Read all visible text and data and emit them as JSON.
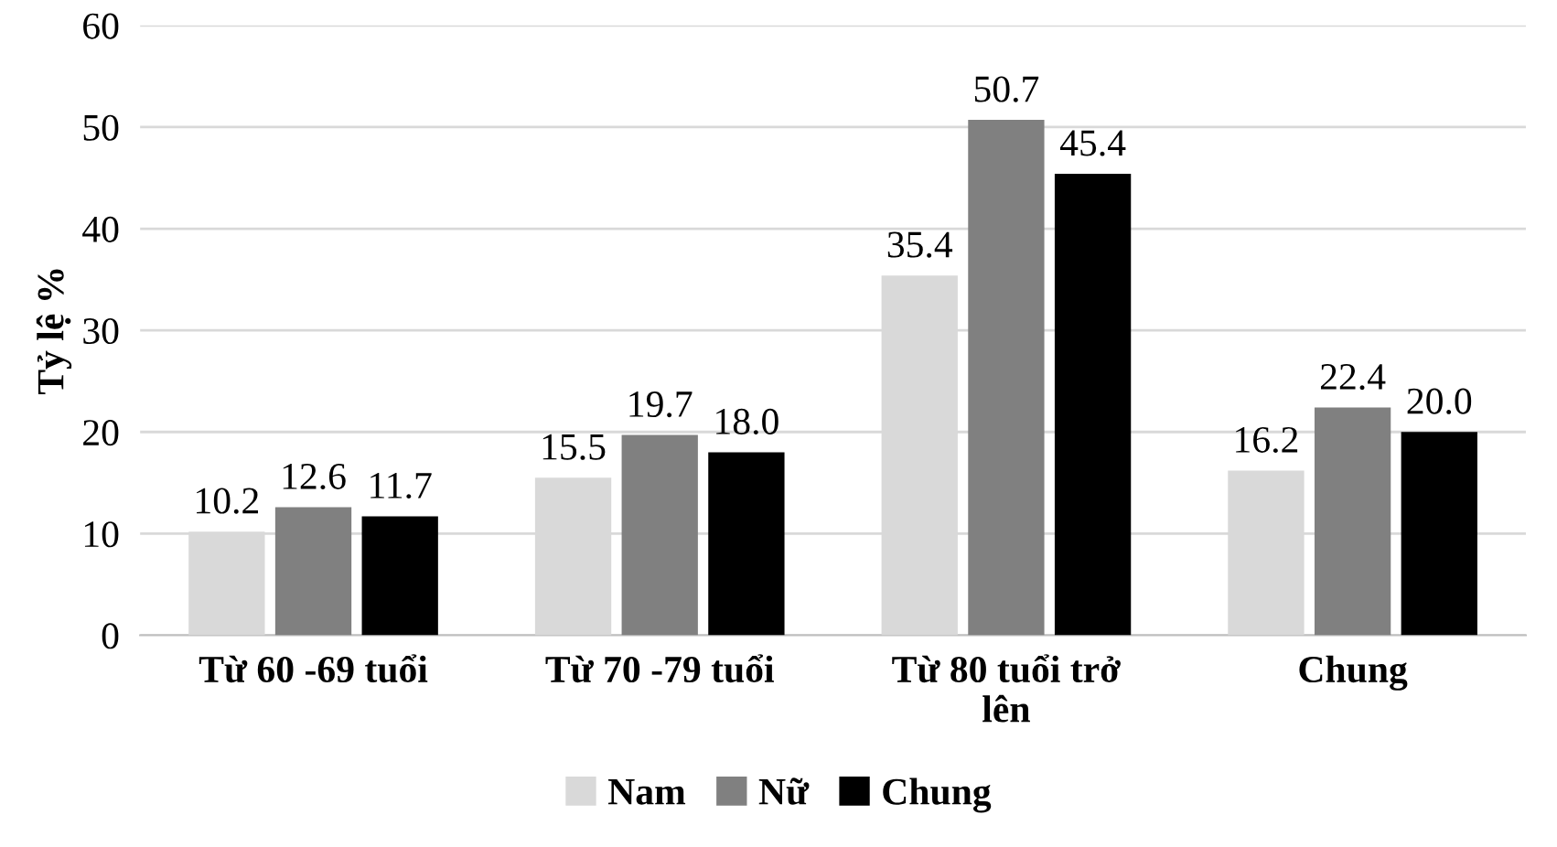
{
  "chart_data": {
    "type": "bar",
    "ylabel": "Tỷ lệ %",
    "categories": [
      "Từ 60 -69 tuổi",
      "Từ 70 -79 tuổi",
      "Từ 80 tuổi trở\nlên",
      "Chung"
    ],
    "series": [
      {
        "name": "Nam",
        "color": "#d9d9d9",
        "values": [
          10.2,
          15.5,
          35.4,
          16.2
        ],
        "value_labels": [
          "10.2",
          "15.5",
          "35.4",
          "16.2"
        ]
      },
      {
        "name": "Nữ",
        "color": "#808080",
        "values": [
          12.6,
          19.7,
          50.7,
          22.4
        ],
        "value_labels": [
          "12.6",
          "19.7",
          "50.7",
          "22.4"
        ]
      },
      {
        "name": "Chung",
        "color": "#000000",
        "values": [
          11.7,
          18.0,
          45.4,
          20.0
        ],
        "value_labels": [
          "11.7",
          "18.0",
          "45.4",
          "20.0"
        ]
      }
    ],
    "ylim": [
      0,
      60
    ],
    "yticks": [
      0,
      10,
      20,
      30,
      40,
      50,
      60
    ],
    "grid": "y",
    "legend": "bottom"
  }
}
